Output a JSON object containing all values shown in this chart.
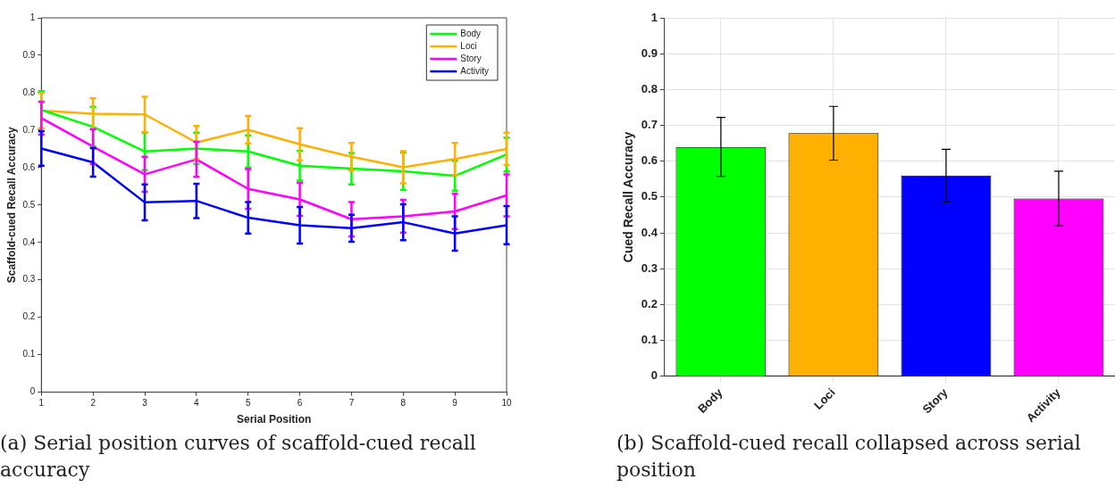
{
  "chart_data": [
    {
      "type": "line",
      "xlabel": "Serial Position",
      "ylabel": "Scaffold-cued Recall Accuracy",
      "x": [
        1,
        2,
        3,
        4,
        5,
        6,
        7,
        8,
        9,
        10
      ],
      "xlim": [
        1,
        10
      ],
      "xticks": [
        1,
        2,
        3,
        4,
        5,
        6,
        7,
        8,
        9,
        10
      ],
      "ylim": [
        0,
        1
      ],
      "yticks": [
        0,
        0.1,
        0.2,
        0.3,
        0.4,
        0.5,
        0.6,
        0.7,
        0.8,
        0.9,
        1
      ],
      "grid": false,
      "legend": "top right",
      "marker": "none",
      "line_style": "solid",
      "annotations": [
        "(a) Serial position curves of scaffold-cued recall accuracy"
      ],
      "series": [
        {
          "name": "Body",
          "color": "#00ff00",
          "values": [
            0.754,
            0.709,
            0.643,
            0.651,
            0.643,
            0.605,
            0.597,
            0.59,
            0.578,
            0.635
          ],
          "errors": [
            0.05,
            0.053,
            0.05,
            0.042,
            0.043,
            0.04,
            0.042,
            0.05,
            0.04,
            0.045
          ]
        },
        {
          "name": "Loci",
          "color": "#ffb000",
          "values": [
            0.752,
            0.744,
            0.742,
            0.667,
            0.701,
            0.662,
            0.629,
            0.601,
            0.623,
            0.65
          ],
          "errors": [
            0.047,
            0.041,
            0.047,
            0.044,
            0.037,
            0.043,
            0.037,
            0.043,
            0.043,
            0.043
          ]
        },
        {
          "name": "Story",
          "color": "#ff00ff",
          "values": [
            0.732,
            0.656,
            0.582,
            0.622,
            0.543,
            0.515,
            0.462,
            0.47,
            0.483,
            0.526
          ],
          "errors": [
            0.044,
            0.046,
            0.047,
            0.047,
            0.053,
            0.044,
            0.046,
            0.044,
            0.047,
            0.056
          ]
        },
        {
          "name": "Activity",
          "color": "#0000ff",
          "values": [
            0.651,
            0.614,
            0.507,
            0.511,
            0.466,
            0.446,
            0.438,
            0.454,
            0.424,
            0.446
          ],
          "errors": [
            0.046,
            0.038,
            0.048,
            0.046,
            0.042,
            0.049,
            0.036,
            0.048,
            0.046,
            0.051
          ]
        }
      ]
    },
    {
      "type": "bar",
      "ylabel": "Cued Recall Accuracy",
      "categories": [
        "Body",
        "Loci",
        "Story",
        "Activity"
      ],
      "values": [
        0.64,
        0.678,
        0.56,
        0.496
      ],
      "errors": [
        0.082,
        0.075,
        0.073,
        0.076
      ],
      "colors": [
        "#00ff00",
        "#ffb000",
        "#0000ff",
        "#ff00ff"
      ],
      "ylim": [
        0,
        1
      ],
      "yticks": [
        0,
        0.1,
        0.2,
        0.3,
        0.4,
        0.5,
        0.6,
        0.7,
        0.8,
        0.9,
        1
      ],
      "grid": true,
      "legend": false,
      "annotations": [
        "(b) Scaffold-cued recall collapsed across serial position"
      ]
    }
  ]
}
